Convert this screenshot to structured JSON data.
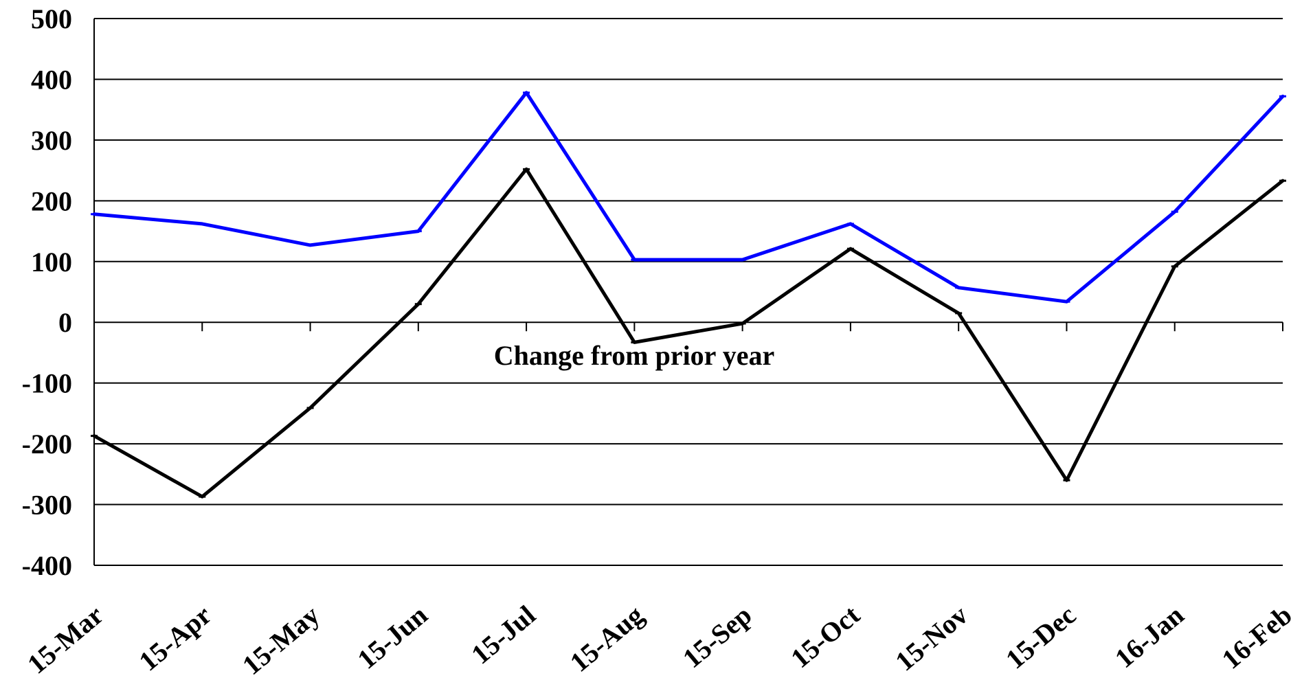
{
  "chart_data": {
    "type": "line",
    "title": "",
    "xlabel": "",
    "ylabel": "",
    "categories": [
      "15-Mar",
      "15-Apr",
      "15-May",
      "15-Jun",
      "15-Jul",
      "15-Aug",
      "15-Sep",
      "15-Oct",
      "15-Nov",
      "15-Dec",
      "16-Jan",
      "16-Feb"
    ],
    "ylim": [
      -400,
      500
    ],
    "yticks": [
      "500",
      "400",
      "300",
      "200",
      "100",
      "0",
      "-100",
      "-200",
      "-300",
      "-400"
    ],
    "grid": true,
    "legend": "none",
    "series": [
      {
        "color": "#0000ff",
        "values": [
          178,
          162,
          127,
          150,
          378,
          103,
          103,
          162,
          57,
          34,
          182,
          372
        ]
      },
      {
        "color": "#000000",
        "values": [
          -187,
          -287,
          -141,
          30,
          252,
          -33,
          -2,
          121,
          15,
          -260,
          92,
          233
        ]
      }
    ],
    "annotation": "Change from prior year"
  }
}
